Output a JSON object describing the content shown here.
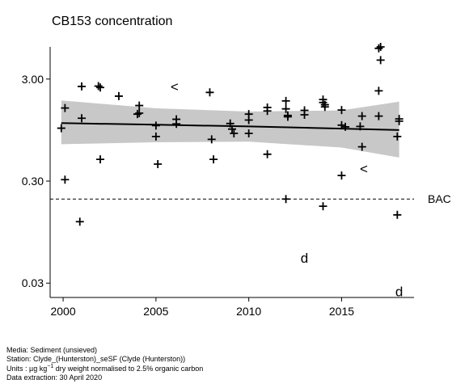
{
  "chart_data": {
    "type": "scatter",
    "title": "CB153 concentration",
    "xlabel": "",
    "ylabel": "",
    "y_scale": "log",
    "xlim": [
      1999.3,
      2018.9
    ],
    "ylim": [
      0.0217,
      6.2
    ],
    "x_ticks": [
      2000,
      2005,
      2010,
      2015
    ],
    "x_tick_labels": [
      "2000",
      "2005",
      "2010",
      "2015"
    ],
    "y_ticks": [
      0.03,
      0.3,
      3.0
    ],
    "y_tick_labels": [
      "0.03",
      "0.30",
      "3.00"
    ],
    "grid": false,
    "points_marker": "+",
    "points": [
      [
        1999.9,
        0.99
      ],
      [
        2000.1,
        1.56
      ],
      [
        2000.1,
        0.31
      ],
      [
        2000.9,
        0.12
      ],
      [
        2001.0,
        2.54
      ],
      [
        2001.0,
        1.24
      ],
      [
        2001.9,
        2.56
      ],
      [
        2002.0,
        2.48
      ],
      [
        2002.0,
        0.49
      ],
      [
        2003.0,
        2.04
      ],
      [
        2004.0,
        1.36
      ],
      [
        2004.1,
        1.65
      ],
      [
        2004.1,
        1.39
      ],
      [
        2005.0,
        1.05
      ],
      [
        2005.0,
        0.82
      ],
      [
        2005.1,
        0.44
      ],
      [
        2006.1,
        1.21
      ],
      [
        2006.1,
        1.09
      ],
      [
        2007.9,
        2.22
      ],
      [
        2008.0,
        0.77
      ],
      [
        2008.1,
        0.49
      ],
      [
        2009.0,
        1.1
      ],
      [
        2009.1,
        0.97
      ],
      [
        2009.2,
        0.88
      ],
      [
        2010.0,
        1.36
      ],
      [
        2010.0,
        1.19
      ],
      [
        2010.0,
        0.88
      ],
      [
        2011.0,
        1.58
      ],
      [
        2011.0,
        1.46
      ],
      [
        2011.0,
        0.55
      ],
      [
        2012.0,
        1.83
      ],
      [
        2012.0,
        1.53
      ],
      [
        2012.1,
        1.32
      ],
      [
        2012.1,
        1.28
      ],
      [
        2012.0,
        0.2
      ],
      [
        2013.0,
        1.48
      ],
      [
        2013.0,
        1.34
      ],
      [
        2014.0,
        1.89
      ],
      [
        2014.0,
        1.77
      ],
      [
        2014.1,
        1.68
      ],
      [
        2014.1,
        1.6
      ],
      [
        2014.0,
        0.17
      ],
      [
        2015.0,
        1.49
      ],
      [
        2015.0,
        1.06
      ],
      [
        2015.2,
        1.02
      ],
      [
        2015.0,
        0.34
      ],
      [
        2016.0,
        1.03
      ],
      [
        2016.1,
        1.3
      ],
      [
        2016.1,
        0.65
      ],
      [
        2017.0,
        6.0
      ],
      [
        2017.1,
        6.2
      ],
      [
        2017.1,
        4.6
      ],
      [
        2017.0,
        2.3
      ],
      [
        2017.0,
        1.3
      ],
      [
        2018.0,
        0.82
      ],
      [
        2018.0,
        0.14
      ],
      [
        2018.1,
        1.22
      ],
      [
        2018.1,
        1.16
      ]
    ],
    "less_than_points": [
      [
        2006.0,
        2.5
      ],
      [
        2016.2,
        0.39
      ]
    ],
    "d_points": [
      [
        2013.0,
        0.052
      ],
      [
        2018.1,
        0.0245
      ]
    ],
    "trend_line": [
      [
        1999.9,
        1.11
      ],
      [
        2005.0,
        1.07
      ],
      [
        2010.0,
        1.03
      ],
      [
        2015.0,
        0.98
      ],
      [
        2018.1,
        0.95
      ]
    ],
    "confidence_band": {
      "lower": [
        [
          1999.9,
          0.69
        ],
        [
          2005.0,
          0.72
        ],
        [
          2010.0,
          0.73
        ],
        [
          2015.0,
          0.64
        ],
        [
          2018.1,
          0.51
        ]
      ],
      "upper": [
        [
          1999.9,
          1.85
        ],
        [
          2005.0,
          1.55
        ],
        [
          2010.0,
          1.44
        ],
        [
          2015.0,
          1.48
        ],
        [
          2018.1,
          1.8
        ]
      ]
    },
    "reference_line": {
      "label": "BAC",
      "value": 0.2,
      "style": "dashed"
    },
    "colors": {
      "points": "#000000",
      "band": "#c8c8c8",
      "trend": "#000000"
    }
  },
  "footer": {
    "media": "Media: Sediment (unsieved)",
    "station": "Station: Clyde_(Hunterston)_seSF (Clyde (Hunterston))",
    "units_prefix": "Units : µg kg",
    "units_exponent": "−1",
    "units_suffix": " dry weight normalised to 2.5% organic carbon",
    "extraction": "Data extraction: 30 April 2020"
  }
}
